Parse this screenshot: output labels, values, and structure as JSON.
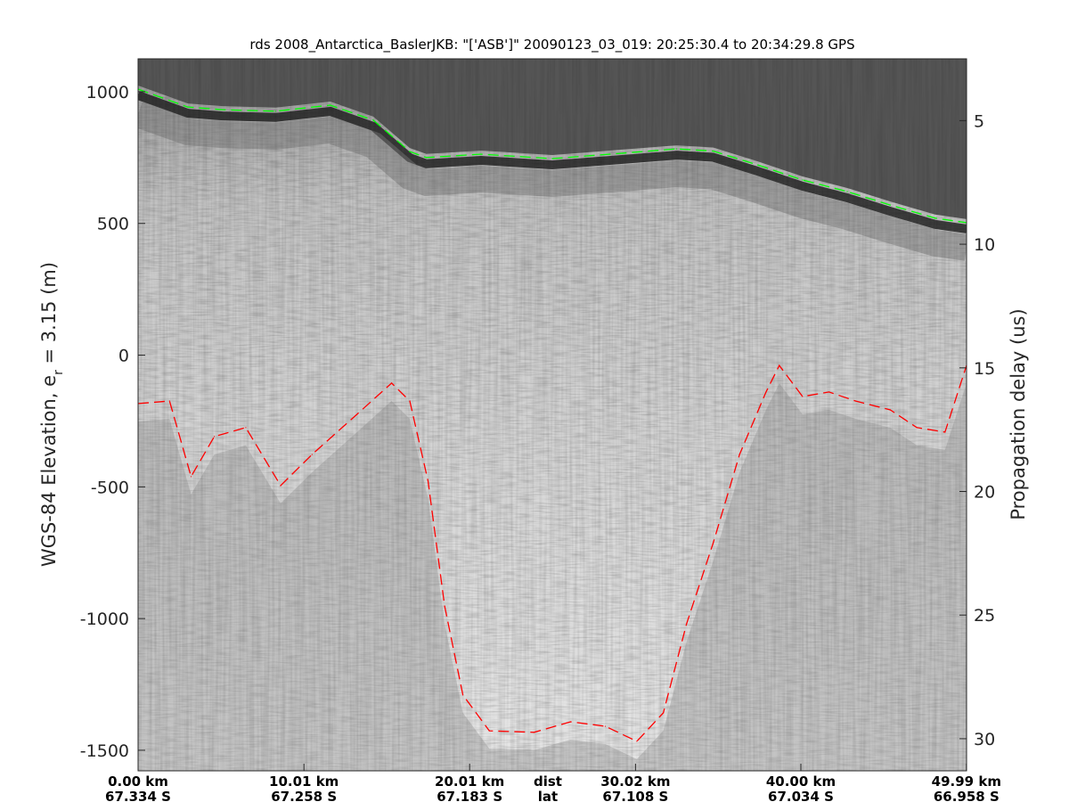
{
  "chart_data": {
    "type": "line",
    "title": "rds 2008_Antarctica_BaslerJKB: \"['ASB']\"  20090123_03_019: 20:25:30.4 to 20:34:29.8 GPS",
    "ylabel": {
      "main": "WGS-84 Elevation, e",
      "sub": "r",
      "rest": " = 3.15 (m)"
    },
    "y2label": "Propagation delay (us)",
    "ylim": [
      -1578,
      1125
    ],
    "y2lim": [
      2.5,
      31.3
    ],
    "xlim": [
      0,
      50
    ],
    "yticks": [
      1000,
      500,
      0,
      -500,
      -1000,
      -1500
    ],
    "y2ticks": [
      5,
      10,
      15,
      20,
      25,
      30
    ],
    "xticks": [
      {
        "dist": "0.00 km",
        "lat": "67.334 S",
        "value": 0
      },
      {
        "dist": "10.01 km",
        "lat": "67.258 S",
        "value": 10.01
      },
      {
        "dist": "20.01 km",
        "lat": "67.183 S",
        "value": 20.01
      },
      {
        "dist": "30.02 km",
        "lat": "67.108 S",
        "value": 30.02
      },
      {
        "dist": "40.00 km",
        "lat": "67.034 S",
        "value": 40.0
      },
      {
        "dist": "49.99 km",
        "lat": "66.958 S",
        "value": 49.99
      }
    ],
    "xaxis_row_labels": {
      "dist": "dist",
      "lat": "lat"
    },
    "background": "radar echogram (grayscale)",
    "grid": false,
    "series": [
      {
        "role": "surface",
        "color": "#00ff00",
        "style": "dashed",
        "x": [
          0,
          3.0,
          5.1,
          8.3,
          11.6,
          14.2,
          16.4,
          17.4,
          20.7,
          25.0,
          29.3,
          32.5,
          34.7,
          37.4,
          40.1,
          42.8,
          45.4,
          48.1,
          50.0
        ],
        "y": [
          1010,
          942,
          932,
          926,
          949,
          892,
          773,
          750,
          763,
          746,
          767,
          783,
          775,
          722,
          665,
          621,
          570,
          520,
          503
        ]
      },
      {
        "role": "bed",
        "color": "#ff0000",
        "style": "dashed",
        "x": [
          0,
          1.9,
          3.2,
          4.6,
          6.5,
          8.6,
          10.5,
          13.2,
          15.3,
          16.4,
          17.5,
          18.5,
          19.6,
          21.2,
          23.9,
          26.1,
          28.2,
          30.1,
          31.7,
          33.1,
          34.7,
          36.3,
          37.9,
          38.7,
          40.1,
          41.7,
          43.3,
          45.4,
          47.0,
          48.7,
          50.0
        ],
        "y": [
          -184,
          -174,
          -461,
          -309,
          -275,
          -495,
          -377,
          -225,
          -106,
          -174,
          -478,
          -952,
          -1290,
          -1426,
          -1432,
          -1392,
          -1409,
          -1466,
          -1358,
          -1020,
          -715,
          -377,
          -140,
          -39,
          -157,
          -140,
          -174,
          -208,
          -275,
          -292,
          -39
        ]
      }
    ]
  }
}
